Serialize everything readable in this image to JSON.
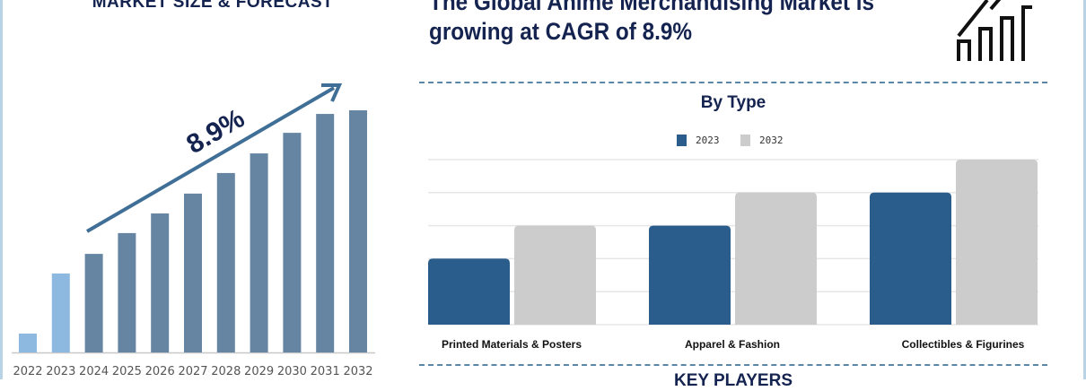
{
  "header": {
    "left_title": "MARKET SIZE & FORECAST",
    "main_title_line1": "The Global Anime Merchandising Market is",
    "main_title_line2": "growing at CAGR of 8.9%",
    "icon": "growth-bar-chart-icon"
  },
  "footer": {
    "section_title": "KEY PLAYERS"
  },
  "colors": {
    "navy": "#14234f",
    "historic_bar": "#8db8e0",
    "forecast_bar": "#6685a3",
    "arrow": "#3f6f96",
    "series_2023": "#2a5d8c",
    "series_2032": "#cccccc"
  },
  "chart_data": [
    {
      "type": "bar",
      "title": "MARKET SIZE & FORECAST",
      "categories": [
        "2022",
        "2023",
        "2024",
        "2025",
        "2026",
        "2027",
        "2028",
        "2029",
        "2030",
        "2031",
        "2032"
      ],
      "values": [
        7.8,
        32.6,
        40.7,
        49.3,
        57.4,
        65.6,
        74.1,
        82.2,
        90.7,
        98.5,
        100
      ],
      "historic_years": [
        "2022",
        "2023"
      ],
      "annotation": "8.9%",
      "xlabel": "",
      "ylabel": "",
      "grid": false
    },
    {
      "type": "bar",
      "title": "By Type",
      "categories": [
        "Printed Materials & Posters",
        "Apparel & Fashion",
        "Collectibles & Figurines"
      ],
      "series": [
        {
          "name": "2023",
          "values": [
            2,
            3,
            4
          ]
        },
        {
          "name": "2032",
          "values": [
            3,
            4,
            5
          ]
        }
      ],
      "ylim": [
        0,
        5
      ],
      "grid": true,
      "legend": "top-center"
    }
  ]
}
